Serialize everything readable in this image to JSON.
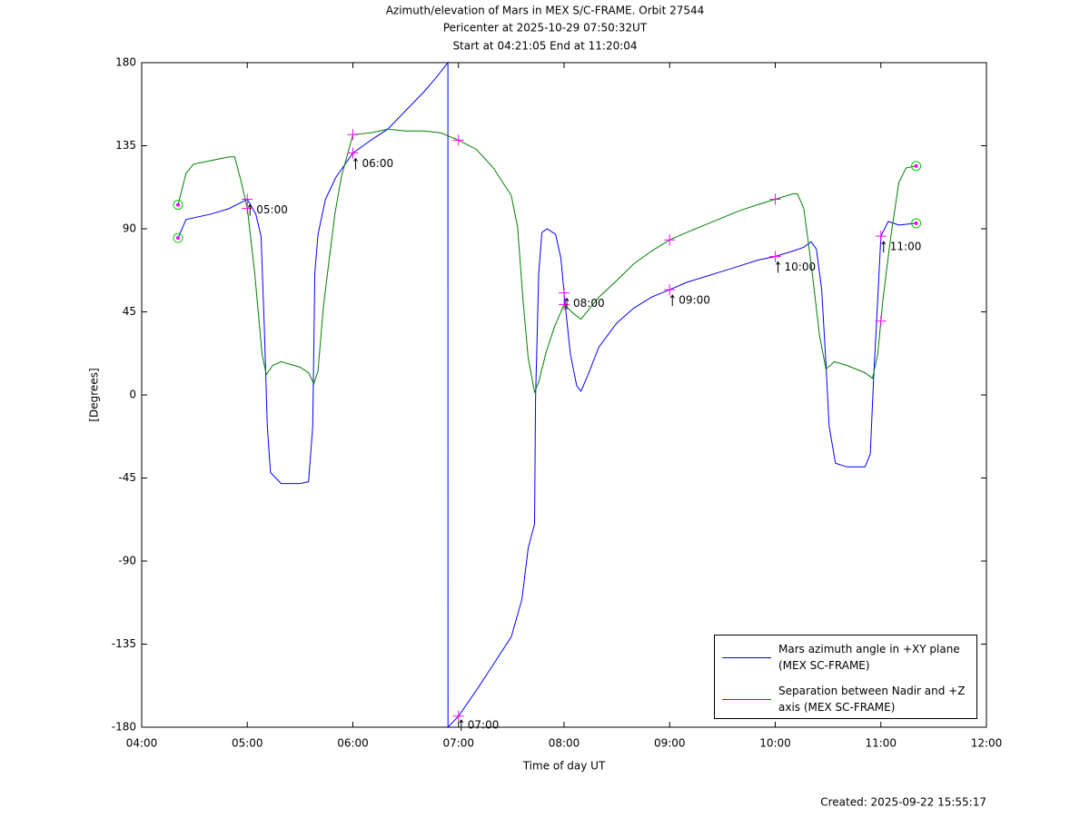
{
  "chart_data": {
    "type": "line",
    "title": "Azimuth/elevation of Mars in MEX S/C-FRAME.  Orbit 27544",
    "subtitle": [
      "Pericenter at 2025-10-29 07:50:32UT",
      "Start at 04:21:05 End at 11:20:04"
    ],
    "x_label": "Time of day UT",
    "y_label": "[Degrees]",
    "footer": "Created: 2025-09-22 15:55:17",
    "xlim": [
      4,
      12
    ],
    "xticks": [
      {
        "value": 4,
        "label": "04:00"
      },
      {
        "value": 5,
        "label": "05:00"
      },
      {
        "value": 6,
        "label": "06:00"
      },
      {
        "value": 7,
        "label": "07:00"
      },
      {
        "value": 8,
        "label": "08:00"
      },
      {
        "value": 9,
        "label": "09:00"
      },
      {
        "value": 10,
        "label": "10:00"
      },
      {
        "value": 11,
        "label": "11:00"
      },
      {
        "value": 12,
        "label": "12:00"
      }
    ],
    "ylim": [
      -180,
      180
    ],
    "yticks": [
      180,
      135,
      90,
      45,
      0,
      -45,
      -90,
      -135,
      -180
    ],
    "grid": false,
    "legend": "lower right",
    "annotations": [
      {
        "x": 5,
        "label": "05:00"
      },
      {
        "x": 6,
        "label": "06:00"
      },
      {
        "x": 7,
        "label": "07:00"
      },
      {
        "x": 8,
        "label": "08:00"
      },
      {
        "x": 9,
        "label": "09:00"
      },
      {
        "x": 10,
        "label": "10:00"
      },
      {
        "x": 11,
        "label": "11:00"
      }
    ],
    "series": [
      {
        "name": "Mars azimuth angle in +XY plane (MEX SC-FRAME)",
        "color": "#0000ff",
        "x": [
          4.344,
          4.42,
          4.66,
          4.83,
          5.0,
          5.08,
          5.13,
          5.16,
          5.19,
          5.22,
          5.32,
          5.5,
          5.58,
          5.62,
          5.64,
          5.67,
          5.74,
          5.84,
          6.0,
          6.17,
          6.33,
          6.5,
          6.67,
          6.79,
          6.9,
          6.901,
          7.0,
          7.17,
          7.33,
          7.5,
          7.6,
          7.66,
          7.72,
          7.73,
          7.76,
          7.79,
          7.84,
          7.92,
          7.97,
          8.01,
          8.06,
          8.12,
          8.16,
          8.22,
          8.33,
          8.5,
          8.66,
          8.83,
          9.0,
          9.16,
          9.33,
          9.5,
          9.67,
          9.83,
          10.0,
          10.17,
          10.27,
          10.34,
          10.39,
          10.44,
          10.48,
          10.51,
          10.57,
          10.68,
          10.85,
          10.9,
          10.93,
          10.97,
          11.0,
          11.07,
          11.17,
          11.334
        ],
        "values": [
          85,
          95,
          98,
          101,
          106,
          98,
          86,
          38,
          -17,
          -42,
          -48,
          -48,
          -47,
          -17,
          66,
          87,
          106,
          118,
          131,
          138,
          144,
          154,
          164,
          172,
          180,
          -180,
          -174,
          -160,
          -146,
          -131,
          -111,
          -83,
          -70,
          -2,
          66,
          88,
          90,
          87,
          74,
          49,
          22,
          5,
          2,
          10,
          26,
          39,
          47,
          53,
          57,
          61,
          64,
          67,
          70,
          73,
          75,
          78,
          80,
          83,
          79,
          57,
          17,
          -17,
          -37,
          -39,
          -39,
          -32,
          7,
          52,
          86,
          94,
          92,
          93
        ]
      },
      {
        "name": "Separation between Nadir and +Z axis (MEX SC-FRAME)",
        "color": "#008000",
        "x": [
          4.344,
          4.42,
          4.49,
          4.66,
          4.83,
          4.88,
          4.94,
          5.0,
          5.07,
          5.14,
          5.18,
          5.24,
          5.32,
          5.5,
          5.58,
          5.63,
          5.67,
          5.72,
          5.77,
          5.83,
          5.89,
          6.0,
          6.17,
          6.33,
          6.5,
          6.67,
          6.83,
          7.0,
          7.17,
          7.33,
          7.5,
          7.56,
          7.61,
          7.66,
          7.72,
          7.76,
          7.83,
          7.91,
          8.0,
          8.09,
          8.16,
          8.33,
          8.5,
          8.66,
          8.83,
          9.0,
          9.16,
          9.33,
          9.5,
          9.67,
          9.83,
          10.0,
          10.17,
          10.21,
          10.27,
          10.34,
          10.42,
          10.48,
          10.56,
          10.68,
          10.85,
          10.92,
          10.97,
          11.02,
          11.09,
          11.17,
          11.24,
          11.334
        ],
        "values": [
          103,
          120,
          125,
          127,
          129,
          129,
          116,
          101,
          66,
          22,
          11,
          16,
          18,
          15,
          12,
          6,
          13,
          47,
          71,
          98,
          118,
          141,
          142,
          144,
          143,
          143,
          142,
          138,
          133,
          123,
          108,
          91,
          52,
          20,
          1.5,
          7,
          23,
          37,
          49,
          44,
          41,
          53,
          62,
          71,
          78,
          84,
          88,
          92,
          96,
          100,
          103,
          106,
          109,
          109,
          101,
          71,
          32,
          14,
          18,
          16,
          12,
          9,
          22,
          52,
          84,
          115,
          123,
          124
        ]
      }
    ]
  }
}
